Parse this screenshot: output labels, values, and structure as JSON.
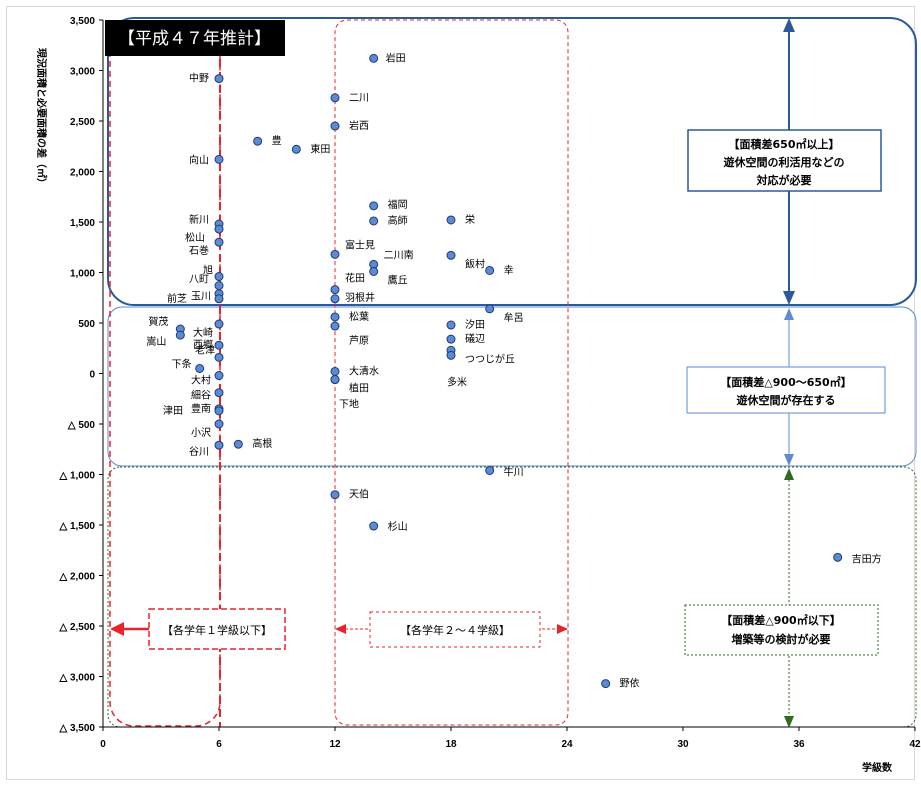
{
  "chart_data": {
    "type": "scatter",
    "title": "【平成４７年推計】",
    "xlabel": "学級数",
    "ylabel": "現況面積と必要面積の差（㎡）",
    "xlim": [
      0,
      42
    ],
    "ylim": [
      -3500,
      3500
    ],
    "x_ticks": [
      "0",
      "6",
      "12",
      "18",
      "24",
      "30",
      "36",
      "42"
    ],
    "y_ticks": [
      {
        "v": 3500,
        "t": "3,500"
      },
      {
        "v": 3000,
        "t": "3,000"
      },
      {
        "v": 2500,
        "t": "2,500"
      },
      {
        "v": 2000,
        "t": "2,000"
      },
      {
        "v": 1500,
        "t": "1,500"
      },
      {
        "v": 1000,
        "t": "1,000"
      },
      {
        "v": 500,
        "t": "500"
      },
      {
        "v": 0,
        "t": "0"
      },
      {
        "v": -500,
        "t": "△ 500"
      },
      {
        "v": -1000,
        "t": "△ 1,000"
      },
      {
        "v": -1500,
        "t": "△ 1,500"
      },
      {
        "v": -2000,
        "t": "△ 2,000"
      },
      {
        "v": -2500,
        "t": "△ 2,500"
      },
      {
        "v": -3000,
        "t": "△ 3,000"
      },
      {
        "v": -3500,
        "t": "△ 3,500"
      }
    ],
    "grid": false,
    "points": [
      {
        "name": "岩田",
        "x": 14,
        "y": 3120,
        "lx": 12,
        "ly": 3
      },
      {
        "name": "中野",
        "x": 6,
        "y": 2920,
        "lx": -30,
        "ly": 3
      },
      {
        "name": "二川",
        "x": 12,
        "y": 2730,
        "lx": 14,
        "ly": 3
      },
      {
        "name": "岩西",
        "x": 12,
        "y": 2450,
        "lx": 14,
        "ly": 3
      },
      {
        "name": "豊",
        "x": 8,
        "y": 2300,
        "lx": 14,
        "ly": 0
      },
      {
        "name": "東田",
        "x": 10,
        "y": 2220,
        "lx": 14,
        "ly": 3
      },
      {
        "name": "向山",
        "x": 6,
        "y": 2120,
        "lx": -30,
        "ly": 4
      },
      {
        "name": "福岡",
        "x": 14,
        "y": 1660,
        "lx": 14,
        "ly": 2
      },
      {
        "name": "栄",
        "x": 18,
        "y": 1520,
        "lx": 14,
        "ly": 3
      },
      {
        "name": "高師",
        "x": 14,
        "y": 1510,
        "lx": 14,
        "ly": 3
      },
      {
        "name": "新川",
        "x": 6,
        "y": 1480,
        "lx": -30,
        "ly": -1
      },
      {
        "name": "松山",
        "x": 6,
        "y": 1430,
        "lx": -34,
        "ly": 12
      },
      {
        "name": "石巻",
        "x": 6,
        "y": 1300,
        "lx": -30,
        "ly": 12
      },
      {
        "name": "富士見",
        "x": 12,
        "y": 1180,
        "lx": 10,
        "ly": -6
      },
      {
        "name": "飯村",
        "x": 18,
        "y": 1170,
        "lx": 14,
        "ly": 12
      },
      {
        "name": "二川南",
        "x": 14,
        "y": 1080,
        "lx": 10,
        "ly": -6
      },
      {
        "name": "鷹丘",
        "x": 14,
        "y": 1010,
        "lx": 14,
        "ly": 12
      },
      {
        "name": "幸",
        "x": 20,
        "y": 1020,
        "lx": 14,
        "ly": 3
      },
      {
        "name": "旭",
        "x": 6,
        "y": 960,
        "lx": -16,
        "ly": -3
      },
      {
        "name": "八町",
        "x": 6,
        "y": 870,
        "lx": -30,
        "ly": -3
      },
      {
        "name": "花田",
        "x": 12,
        "y": 830,
        "lx": 10,
        "ly": -8
      },
      {
        "name": "玉川",
        "x": 6,
        "y": 790,
        "lx": -28,
        "ly": 6
      },
      {
        "name": "前芝",
        "x": 6,
        "y": 740,
        "lx": -52,
        "ly": 0
      },
      {
        "name": "羽根井",
        "x": 12,
        "y": 740,
        "lx": 10,
        "ly": 2
      },
      {
        "name": "牟呂",
        "x": 20,
        "y": 640,
        "lx": 14,
        "ly": 12
      },
      {
        "name": "松葉",
        "x": 12,
        "y": 560,
        "lx": 14,
        "ly": 3
      },
      {
        "name": "賀茂",
        "x": 4,
        "y": 440,
        "lx": -32,
        "ly": -4
      },
      {
        "name": "大崎",
        "x": 6,
        "y": 490,
        "lx": -26,
        "ly": 12
      },
      {
        "name": "汐田",
        "x": 18,
        "y": 480,
        "lx": 14,
        "ly": 3
      },
      {
        "name": "嵩山",
        "x": 4,
        "y": 380,
        "lx": -34,
        "ly": 10
      },
      {
        "name": "芦原",
        "x": 12,
        "y": 470,
        "lx": 14,
        "ly": 18
      },
      {
        "name": "礒辺",
        "x": 18,
        "y": 340,
        "lx": 14,
        "ly": 3
      },
      {
        "name": "西郷",
        "x": 6,
        "y": 280,
        "lx": -26,
        "ly": 3
      },
      {
        "name": "つつじが丘",
        "x": 18,
        "y": 230,
        "lx": 14,
        "ly": 12
      },
      {
        "name": "老津",
        "x": 6,
        "y": 160,
        "lx": -24,
        "ly": -4
      },
      {
        "name": "多米",
        "x": 18,
        "y": 180,
        "lx": -4,
        "ly": 30
      },
      {
        "name": "下条",
        "x": 5,
        "y": 50,
        "lx": -28,
        "ly": -1
      },
      {
        "name": "大清水",
        "x": 12,
        "y": 20,
        "lx": 14,
        "ly": 3
      },
      {
        "name": "大村",
        "x": 6,
        "y": -20,
        "lx": -28,
        "ly": 8
      },
      {
        "name": "植田",
        "x": 12,
        "y": -60,
        "lx": 14,
        "ly": 12
      },
      {
        "name": "下地",
        "x": 12,
        "y": -60,
        "lx": 4,
        "ly": 28
      },
      {
        "name": "細谷",
        "x": 6,
        "y": -190,
        "lx": -28,
        "ly": 6
      },
      {
        "name": "豊南",
        "x": 6,
        "y": -350,
        "lx": -28,
        "ly": 3
      },
      {
        "name": "津田",
        "x": 6,
        "y": -370,
        "lx": -56,
        "ly": 3
      },
      {
        "name": "小沢",
        "x": 6,
        "y": -500,
        "lx": -28,
        "ly": 12
      },
      {
        "name": "谷川",
        "x": 6,
        "y": -710,
        "lx": -30,
        "ly": 10
      },
      {
        "name": "高根",
        "x": 7,
        "y": -700,
        "lx": 14,
        "ly": 3
      },
      {
        "name": "牛川",
        "x": 20,
        "y": -960,
        "lx": 14,
        "ly": 5
      },
      {
        "name": "天伯",
        "x": 12,
        "y": -1200,
        "lx": 14,
        "ly": 3
      },
      {
        "name": "杉山",
        "x": 14,
        "y": -1510,
        "lx": 14,
        "ly": 4
      },
      {
        "name": "吉田方",
        "x": 38,
        "y": -1820,
        "lx": 14,
        "ly": 5
      },
      {
        "name": "野依",
        "x": 26,
        "y": -3070,
        "lx": 14,
        "ly": 3
      }
    ]
  },
  "zones": {
    "upper": {
      "line1": "【面積差650㎡以上】",
      "line2": "遊休空間の利活用などの",
      "line3": "対応が必要"
    },
    "middle": {
      "line1": "【面積差△900～650㎡】",
      "line2": "遊休空間が存在する"
    },
    "lower": {
      "line1": "【面積差△900㎡以下】",
      "line2": "増築等の検討が必要"
    }
  },
  "annotations": {
    "class1": "【各学年１学級以下】",
    "class2to4": "【各学年２～４学級】"
  },
  "colors": {
    "marker_fill": "#5b8bd4",
    "marker_stroke": "#1f3b73",
    "upper_zone": "#2a5a9c",
    "middle_zone": "#5b8bd4",
    "lower_zone": "#2e6b1f",
    "dashed_red": "#e8232a",
    "title_bg": "#000000"
  }
}
